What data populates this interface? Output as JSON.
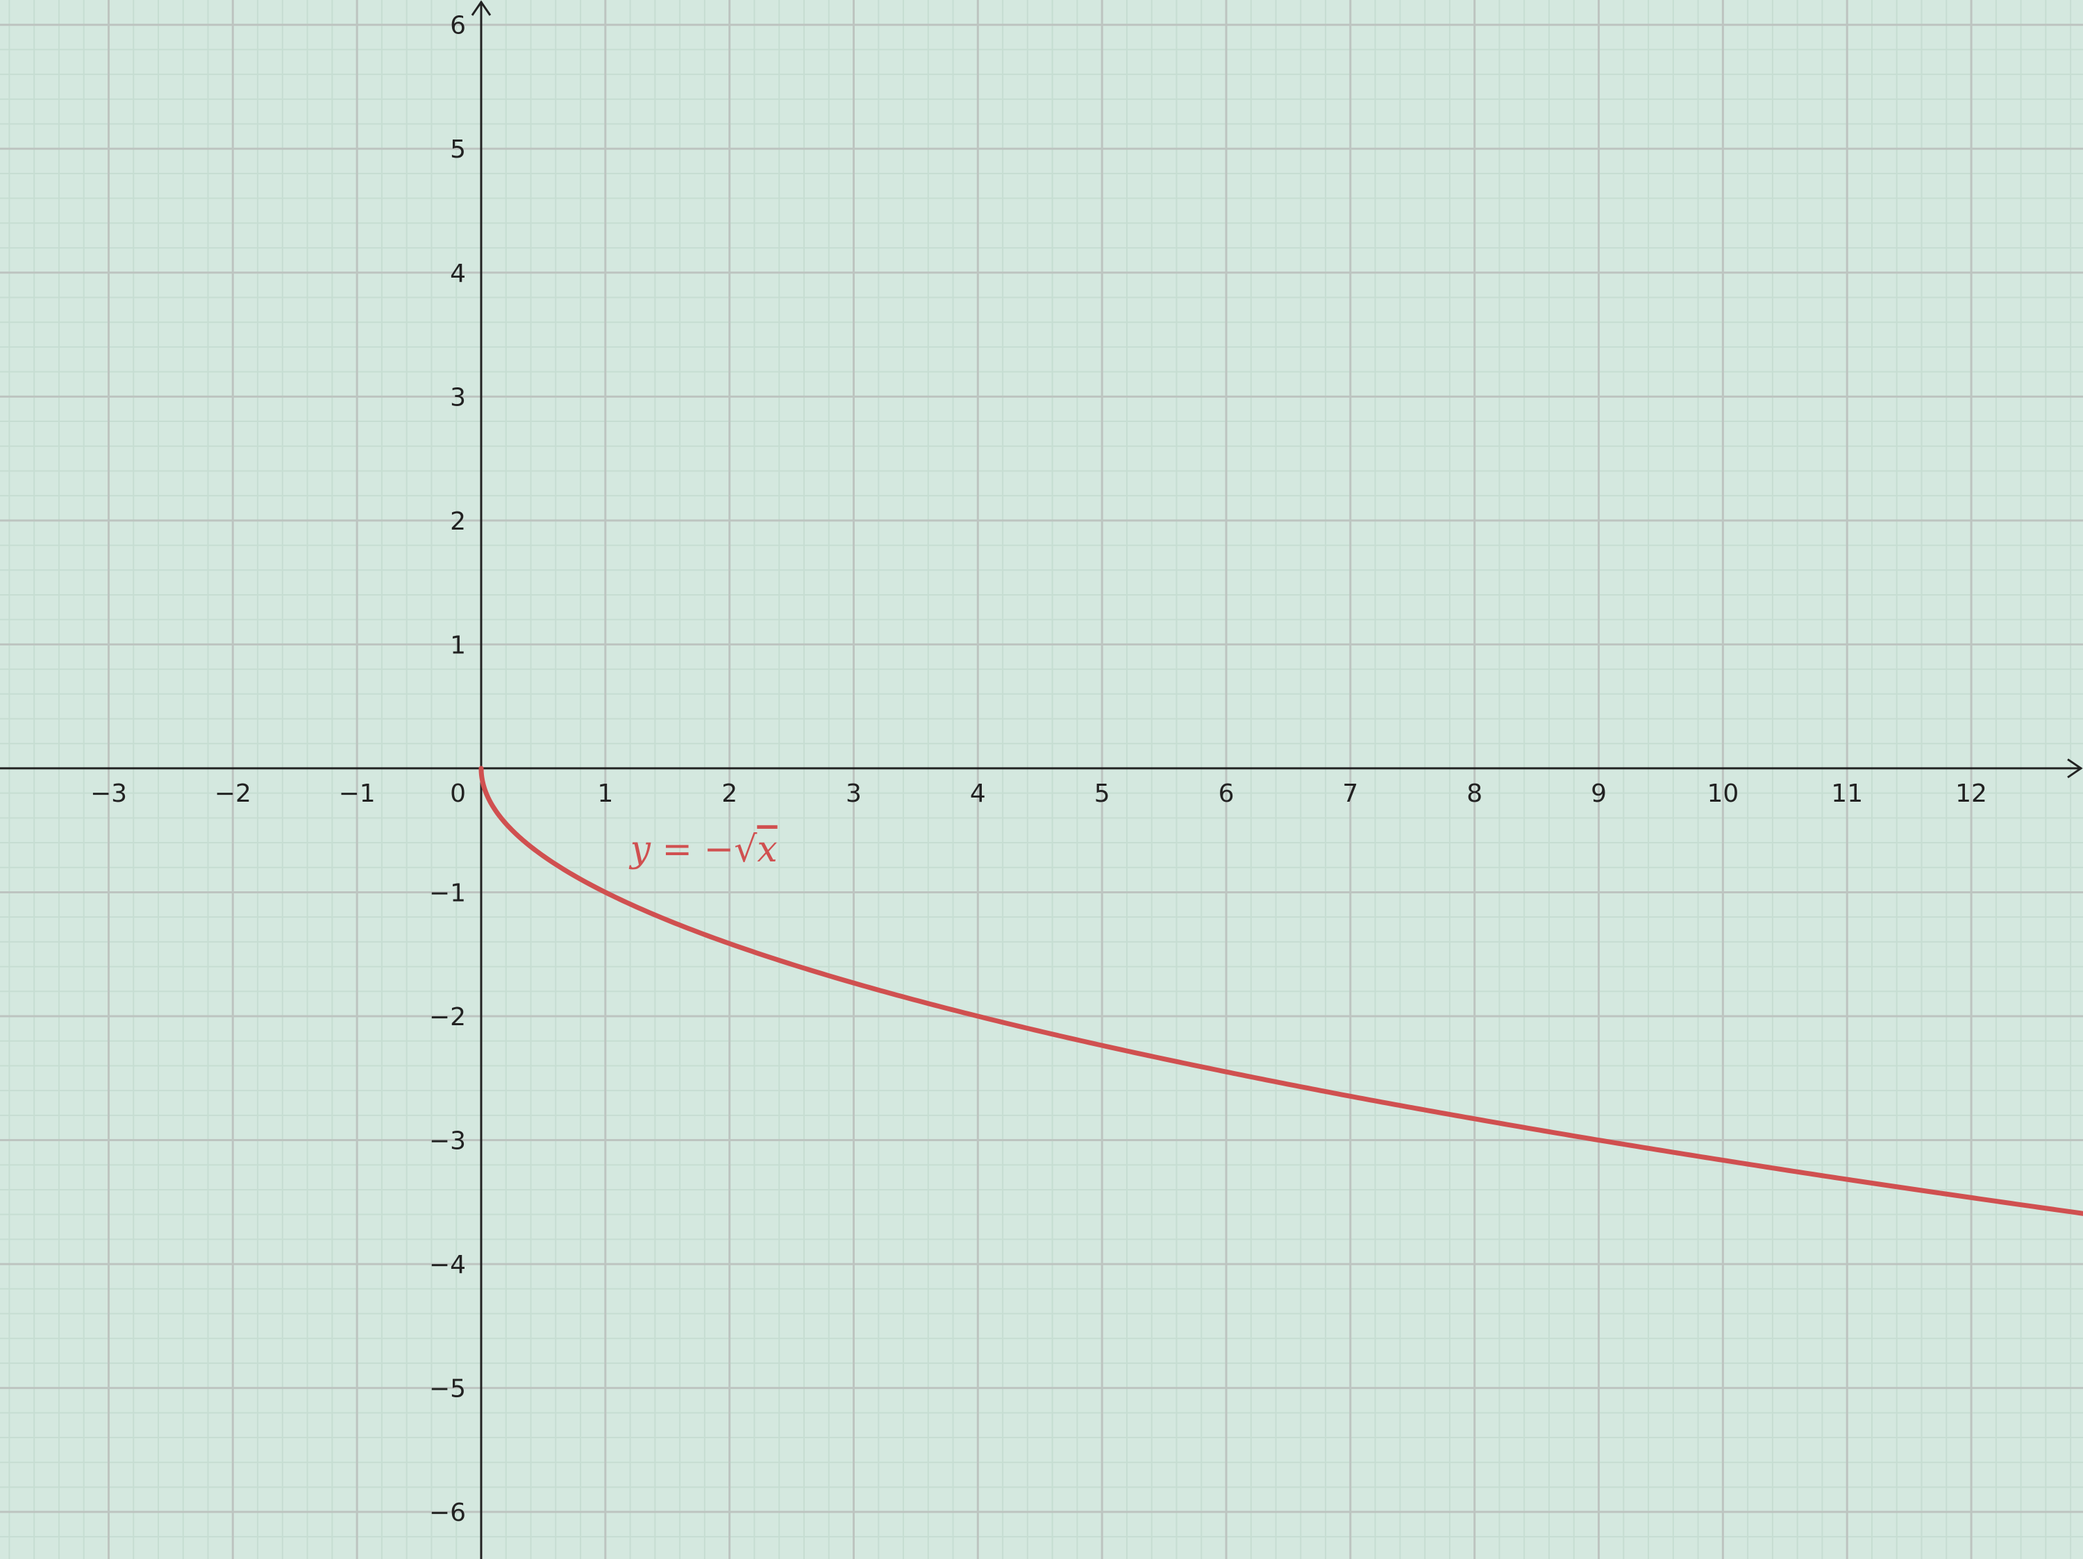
{
  "chart_data": {
    "type": "line",
    "title": "",
    "xlabel": "",
    "ylabel": "",
    "xlim": [
      -3.875,
      12.9
    ],
    "ylim": [
      -6.38,
      6.2
    ],
    "x_ticks": [
      -3,
      -2,
      -1,
      1,
      2,
      3,
      4,
      5,
      6,
      7,
      8,
      9,
      10,
      11,
      12
    ],
    "y_ticks": [
      -6,
      -5,
      -4,
      -3,
      -2,
      -1,
      1,
      2,
      3,
      4,
      5,
      6
    ],
    "x_tick_labels": [
      "−3",
      "−2",
      "−1",
      "1",
      "2",
      "3",
      "4",
      "5",
      "6",
      "7",
      "8",
      "9",
      "10",
      "11",
      "12"
    ],
    "y_tick_labels": [
      "−6",
      "−5",
      "−4",
      "−3",
      "−2",
      "−1",
      "1",
      "2",
      "3",
      "4",
      "5",
      "6"
    ],
    "origin_label": "0",
    "grid": true,
    "minor_grid_per_unit": 5,
    "series": [
      {
        "name": "y = −√x",
        "color": "#d05050",
        "x": [
          0,
          0.25,
          0.5,
          1,
          2,
          3,
          4,
          5,
          6,
          7,
          8,
          9,
          10,
          11,
          12,
          12.9
        ],
        "values": [
          0,
          -0.5,
          -0.707,
          -1,
          -1.414,
          -1.732,
          -2,
          -2.236,
          -2.449,
          -2.646,
          -2.828,
          -3,
          -3.162,
          -3.317,
          -3.464,
          -3.592
        ]
      }
    ],
    "annotations": [
      {
        "text_parts": [
          "y",
          " = −",
          "√",
          "x"
        ],
        "near_x": 1.2,
        "near_y": -0.75,
        "color": "#d05050"
      }
    ],
    "colors": {
      "background": "#d4e8df",
      "major_grid": "#bdc4c0",
      "minor_grid": "#c6ddd2",
      "axis": "#222222",
      "curve": "#d05050"
    }
  }
}
